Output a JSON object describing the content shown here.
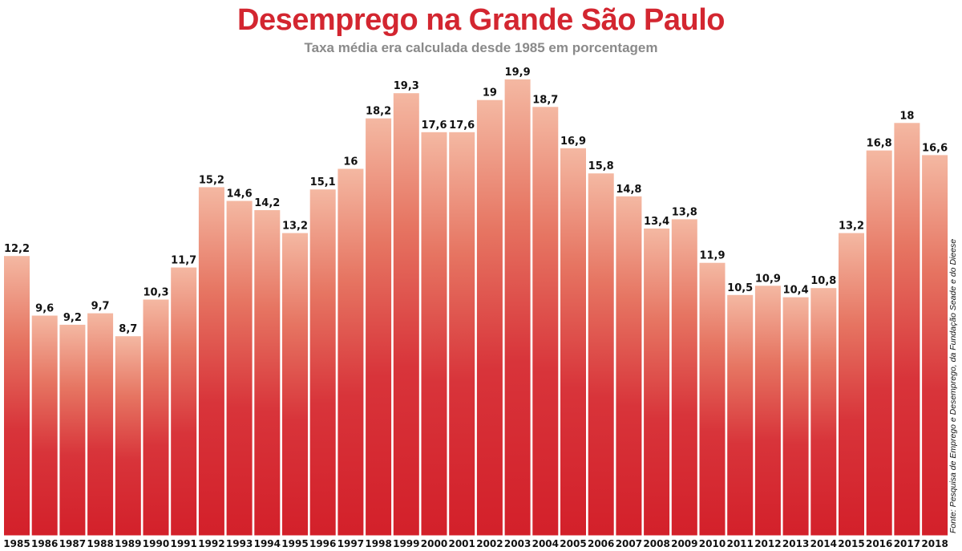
{
  "chart_data": {
    "type": "bar",
    "title": "Desemprego na Grande São Paulo",
    "subtitle": "Taxa média era calculada desde 1985 em porcentagem",
    "categories": [
      "1985",
      "1986",
      "1987",
      "1988",
      "1989",
      "1990",
      "1991",
      "1992",
      "1993",
      "1994",
      "1995",
      "1996",
      "1997",
      "1998",
      "1999",
      "2000",
      "2001",
      "2002",
      "2003",
      "2004",
      "2005",
      "2006",
      "2007",
      "2008",
      "2009",
      "2010",
      "2011",
      "2012",
      "2013",
      "2014",
      "2015",
      "2016",
      "2017",
      "2018"
    ],
    "values": [
      12.2,
      9.6,
      9.2,
      9.7,
      8.7,
      10.3,
      11.7,
      15.2,
      14.6,
      14.2,
      13.2,
      15.1,
      16,
      18.2,
      19.3,
      17.6,
      17.6,
      19,
      19.9,
      18.7,
      16.9,
      15.8,
      14.8,
      13.4,
      13.8,
      11.9,
      10.5,
      10.9,
      10.4,
      10.8,
      13.2,
      16.8,
      18,
      16.6
    ],
    "value_labels": [
      "12,2",
      "9,6",
      "9,2",
      "9,7",
      "8,7",
      "10,3",
      "11,7",
      "15,2",
      "14,6",
      "14,2",
      "13,2",
      "15,1",
      "16",
      "18,2",
      "19,3",
      "17,6",
      "17,6",
      "19",
      "19,9",
      "18,7",
      "16,9",
      "15,8",
      "14,8",
      "13,4",
      "13,8",
      "11,9",
      "10,5",
      "10,9",
      "10,4",
      "10,8",
      "13,2",
      "16,8",
      "18",
      "16,6"
    ],
    "ylim": [
      0,
      19.9
    ],
    "grid": false,
    "xlabel": "",
    "ylabel": "",
    "colors": {
      "bar_top": "#f4b8a2",
      "bar_mid": "#e05a45",
      "bar_bottom": "#d3202a",
      "title": "#d32630",
      "subtitle": "#8a8a8a"
    },
    "source": "Fonte: Pesquisa de Emprego e Desemprego, da Fundação Seade e do Dieese"
  }
}
